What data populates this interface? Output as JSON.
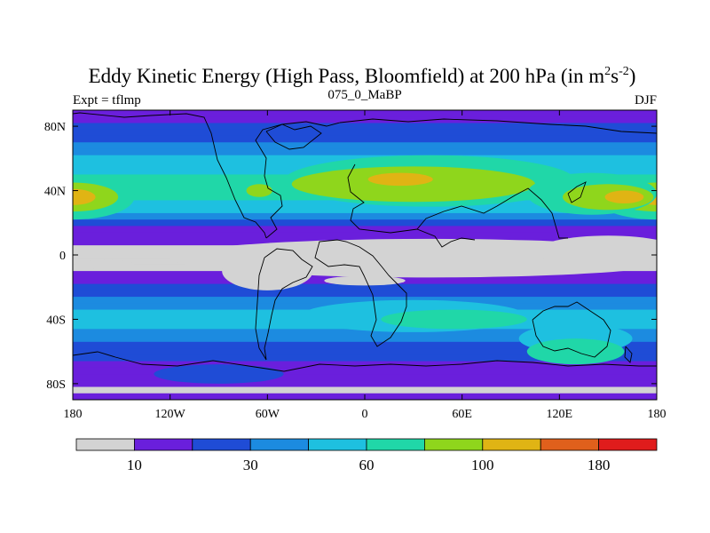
{
  "chart_data": {
    "type": "heatmap",
    "title": "Eddy Kinetic Energy (High Pass, Bloomfield) at 200 hPa (in m",
    "title_unit_m_exp": "2",
    "title_unit_s": "s",
    "title_unit_s_exp": "-2",
    "title_close": ")",
    "left_label": "Expt = tflmp",
    "center_label": "075_0_MaBP",
    "right_label": "DJF",
    "xlim": [
      -180,
      180
    ],
    "ylim": [
      -90,
      90
    ],
    "x_ticks": [
      {
        "value": -180,
        "label": "180"
      },
      {
        "value": -120,
        "label": "120W"
      },
      {
        "value": -60,
        "label": "60W"
      },
      {
        "value": 0,
        "label": "0"
      },
      {
        "value": 60,
        "label": "60E"
      },
      {
        "value": 120,
        "label": "120E"
      },
      {
        "value": 180,
        "label": "180"
      }
    ],
    "y_ticks": [
      {
        "value": 80,
        "label": "80N"
      },
      {
        "value": 40,
        "label": "40N"
      },
      {
        "value": 0,
        "label": "0"
      },
      {
        "value": -40,
        "label": "40S"
      },
      {
        "value": -80,
        "label": "80S"
      }
    ],
    "colorbar": {
      "colors": [
        "#d3d3d3",
        "#6a1fdc",
        "#1f4cd6",
        "#1c8be0",
        "#1ec0e0",
        "#20d7a8",
        "#8fd61c",
        "#e0b414",
        "#e0601c",
        "#e01c1c"
      ],
      "levels": [
        5,
        10,
        20,
        30,
        45,
        60,
        80,
        100,
        140,
        180
      ],
      "labels": [
        {
          "after_box": 1,
          "text": "10"
        },
        {
          "after_box": 3,
          "text": "30"
        },
        {
          "after_box": 5,
          "text": "60"
        },
        {
          "after_box": 7,
          "text": "100"
        },
        {
          "after_box": 9,
          "text": "180"
        }
      ]
    },
    "zonal_profile": {
      "lat": [
        90,
        86,
        82,
        78,
        74,
        70,
        66,
        62,
        58,
        54,
        50,
        46,
        42,
        38,
        34,
        30,
        26,
        22,
        18,
        14,
        10,
        6,
        2,
        -2,
        -6,
        -10,
        -14,
        -18,
        -22,
        -26,
        -30,
        -34,
        -38,
        -42,
        -46,
        -50,
        -54,
        -58,
        -62,
        -66,
        -70,
        -74,
        -78,
        -82,
        -86,
        -90
      ],
      "level": [
        1,
        1,
        2,
        2,
        2,
        3,
        3,
        4,
        4,
        4,
        5,
        5,
        5,
        5,
        4,
        4,
        3,
        2,
        1,
        1,
        1,
        0,
        0,
        0,
        0,
        1,
        1,
        2,
        2,
        3,
        3,
        4,
        4,
        4,
        3,
        3,
        2,
        2,
        2,
        1,
        1,
        1,
        1,
        0,
        1,
        1
      ]
    },
    "anomalies": [
      {
        "lon": 180,
        "lat": 36,
        "rx": 38,
        "ry": 14,
        "level": 5
      },
      {
        "lon": 180,
        "lat": 36,
        "rx": 28,
        "ry": 9,
        "level": 6
      },
      {
        "lon": 180,
        "lat": 36,
        "rx": 14,
        "ry": 5,
        "level": 7
      },
      {
        "lon": -180,
        "lat": 36,
        "rx": 38,
        "ry": 14,
        "level": 5
      },
      {
        "lon": -180,
        "lat": 36,
        "rx": 28,
        "ry": 9,
        "level": 6
      },
      {
        "lon": -180,
        "lat": 36,
        "rx": 14,
        "ry": 5,
        "level": 7
      },
      {
        "lon": 40,
        "lat": 46,
        "rx": 90,
        "ry": 16,
        "level": 5
      },
      {
        "lon": 30,
        "lat": 44,
        "rx": 75,
        "ry": 11,
        "level": 6
      },
      {
        "lon": 22,
        "lat": 47,
        "rx": 20,
        "ry": 4,
        "level": 7
      },
      {
        "lon": 140,
        "lat": 38,
        "rx": 40,
        "ry": 13,
        "level": 5
      },
      {
        "lon": 150,
        "lat": 36,
        "rx": 28,
        "ry": 8,
        "level": 6
      },
      {
        "lon": 160,
        "lat": 36,
        "rx": 12,
        "ry": 4,
        "level": 7
      },
      {
        "lon": -65,
        "lat": 40,
        "rx": 8,
        "ry": 4,
        "level": 6
      },
      {
        "lon": 40,
        "lat": -2,
        "rx": 160,
        "ry": 12,
        "level": 0
      },
      {
        "lon": 150,
        "lat": 2,
        "rx": 45,
        "ry": 10,
        "level": 0
      },
      {
        "lon": -60,
        "lat": -10,
        "rx": 28,
        "ry": 12,
        "level": 0
      },
      {
        "lon": -160,
        "lat": -6,
        "rx": 18,
        "ry": 3,
        "level": 0
      },
      {
        "lon": 30,
        "lat": -38,
        "rx": 70,
        "ry": 10,
        "level": 4
      },
      {
        "lon": 55,
        "lat": -40,
        "rx": 45,
        "ry": 6,
        "level": 5
      },
      {
        "lon": 130,
        "lat": -52,
        "rx": 35,
        "ry": 9,
        "level": 4
      },
      {
        "lon": 130,
        "lat": -60,
        "rx": 30,
        "ry": 8,
        "level": 5
      },
      {
        "lon": 0,
        "lat": -16,
        "rx": 25,
        "ry": 3,
        "level": 0
      },
      {
        "lon": -90,
        "lat": -74,
        "rx": 40,
        "ry": 6,
        "level": 2
      }
    ]
  }
}
